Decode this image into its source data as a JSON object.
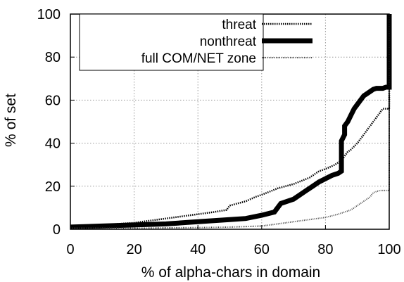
{
  "chart_data": {
    "type": "line",
    "title": "",
    "xlabel": "% of alpha-chars in domain",
    "ylabel": "% of set",
    "xlim": [
      0,
      100
    ],
    "ylim": [
      0,
      100
    ],
    "xticks": [
      "0",
      "20",
      "40",
      "60",
      "80",
      "100"
    ],
    "yticks": [
      "0",
      "20",
      "40",
      "60",
      "80",
      "100"
    ],
    "grid": true,
    "legend_position": "top-left",
    "series": [
      {
        "name": "threat",
        "style": "dotted",
        "x": [
          0,
          10,
          20,
          30,
          40,
          45,
          49,
          50,
          55,
          58,
          60,
          65,
          70,
          75,
          78,
          80,
          83,
          85,
          86,
          87,
          88,
          90,
          92,
          94,
          96,
          98,
          100,
          100
        ],
        "y": [
          1,
          2,
          3,
          5,
          7,
          8,
          9,
          11,
          13,
          15,
          16,
          19,
          21,
          24,
          27,
          28,
          30,
          32,
          34,
          36,
          37,
          40,
          44,
          48,
          52,
          56,
          56,
          100
        ]
      },
      {
        "name": "nonthreat",
        "style": "thick",
        "x": [
          0,
          10,
          20,
          30,
          40,
          50,
          55,
          60,
          64,
          65,
          66,
          70,
          72,
          74,
          76,
          78,
          80,
          82,
          84,
          85,
          85,
          86,
          86,
          87,
          88,
          89,
          90,
          91,
          92,
          93,
          94,
          95,
          96,
          98,
          99,
          100,
          100
        ],
        "y": [
          1,
          1.5,
          2,
          2.5,
          3.5,
          4.5,
          5,
          6.5,
          8,
          10,
          12,
          14,
          16,
          18,
          20,
          22,
          23.5,
          25,
          26,
          27,
          41,
          44,
          48,
          50,
          53,
          56,
          58,
          60,
          62,
          63,
          64,
          65,
          65.5,
          65.5,
          66,
          66,
          100
        ]
      },
      {
        "name": "full COM/NET zone",
        "style": "dotted-thin",
        "x": [
          0,
          20,
          40,
          50,
          60,
          65,
          70,
          75,
          80,
          84,
          86,
          88,
          90,
          92,
          94,
          95,
          97,
          99,
          100,
          100
        ],
        "y": [
          0.5,
          0.5,
          0.8,
          1,
          1.5,
          2.5,
          3.5,
          4.5,
          5.5,
          7,
          8,
          9,
          11,
          13,
          15,
          17,
          18,
          18,
          18,
          100
        ]
      }
    ]
  }
}
